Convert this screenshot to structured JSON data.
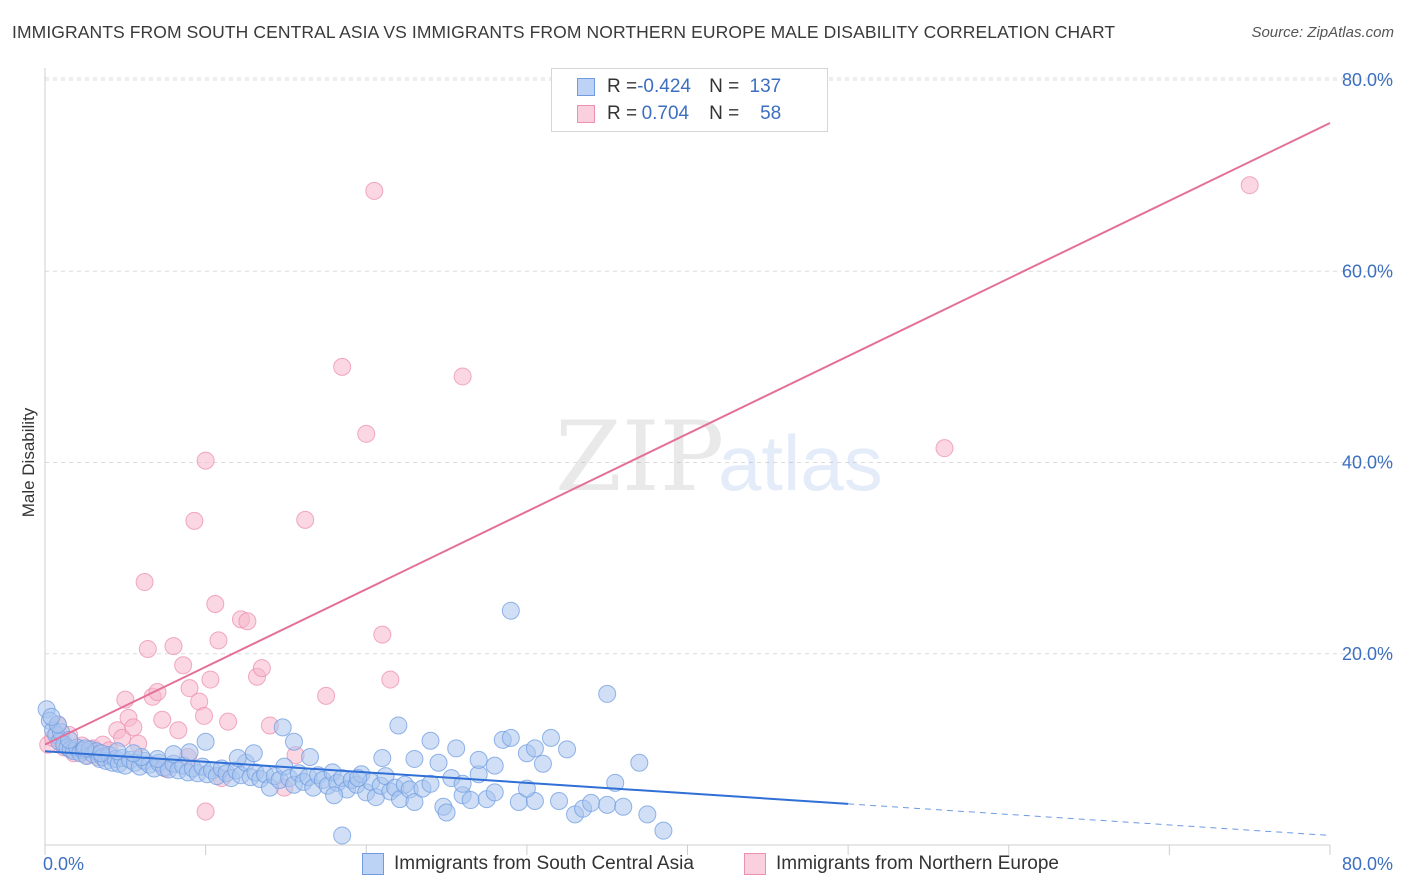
{
  "title": "IMMIGRANTS FROM SOUTH CENTRAL ASIA VS IMMIGRANTS FROM NORTHERN EUROPE MALE DISABILITY CORRELATION CHART",
  "source": "Source: ZipAtlas.com",
  "watermark": {
    "zip": "ZIP",
    "atlas": "atlas"
  },
  "legend": {
    "rows": [
      {
        "r_label": "R =",
        "r_value": "-0.424",
        "n_label": "N =",
        "n_value": "137",
        "color": "#a9c4ef"
      },
      {
        "r_label": "R =",
        "r_value": "0.704",
        "n_label": "N =",
        "n_value": "58",
        "color": "#f6b7cb"
      }
    ]
  },
  "bottom_legend": {
    "items": [
      {
        "label": "Immigrants from South Central Asia",
        "color": "#a9c4ef"
      },
      {
        "label": "Immigrants from Northern Europe",
        "color": "#f6b7cb"
      }
    ]
  },
  "chart_data": {
    "type": "scatter",
    "title": "IMMIGRANTS FROM SOUTH CENTRAL ASIA VS IMMIGRANTS FROM NORTHERN EUROPE MALE DISABILITY CORRELATION CHART",
    "xlabel": "",
    "ylabel": "Male Disability",
    "xlim": [
      0,
      80
    ],
    "ylim": [
      0,
      80
    ],
    "x_tick_labels": [
      "0.0%",
      "80.0%"
    ],
    "y_tick_labels": [
      "20.0%",
      "40.0%",
      "60.0%",
      "80.0%"
    ],
    "y_ticks": [
      20,
      40,
      60,
      80
    ],
    "grid": true,
    "legend_position": "top-center",
    "series": [
      {
        "name": "Immigrants from South Central Asia",
        "color": "#6f9ce0",
        "fill": "#a9c4ef",
        "r": -0.424,
        "n": 137,
        "trend": {
          "x0": 0,
          "y0": 9.8,
          "x1": 50,
          "y1": 4.3,
          "dashed_to_x": 80,
          "dashed_to_y": 1.0
        },
        "points": [
          [
            0.1,
            14.2
          ],
          [
            0.3,
            13.0
          ],
          [
            0.5,
            12.0
          ],
          [
            0.7,
            11.5
          ],
          [
            0.9,
            10.8
          ],
          [
            1.0,
            11.8
          ],
          [
            1.2,
            10.5
          ],
          [
            1.4,
            10.2
          ],
          [
            1.6,
            10.0
          ],
          [
            1.8,
            9.8
          ],
          [
            2.0,
            10.2
          ],
          [
            2.2,
            9.6
          ],
          [
            2.4,
            9.9
          ],
          [
            2.6,
            9.3
          ],
          [
            2.8,
            10.0
          ],
          [
            3.0,
            9.5
          ],
          [
            3.2,
            9.8
          ],
          [
            3.4,
            9.0
          ],
          [
            3.6,
            9.2
          ],
          [
            3.8,
            8.8
          ],
          [
            4.0,
            9.4
          ],
          [
            4.2,
            8.6
          ],
          [
            4.4,
            9.0
          ],
          [
            4.6,
            8.5
          ],
          [
            4.8,
            9.1
          ],
          [
            5.0,
            8.3
          ],
          [
            5.3,
            8.9
          ],
          [
            5.6,
            8.6
          ],
          [
            5.9,
            8.2
          ],
          [
            6.2,
            8.8
          ],
          [
            6.5,
            8.4
          ],
          [
            6.8,
            8.0
          ],
          [
            7.1,
            8.6
          ],
          [
            7.4,
            8.1
          ],
          [
            7.7,
            7.9
          ],
          [
            8.0,
            8.5
          ],
          [
            8.3,
            7.8
          ],
          [
            8.6,
            8.3
          ],
          [
            8.9,
            7.6
          ],
          [
            9.2,
            8.0
          ],
          [
            9.5,
            7.5
          ],
          [
            9.8,
            8.2
          ],
          [
            10.1,
            7.4
          ],
          [
            10.4,
            7.8
          ],
          [
            10.7,
            7.2
          ],
          [
            11.0,
            8.0
          ],
          [
            11.3,
            7.5
          ],
          [
            11.6,
            7.0
          ],
          [
            11.9,
            7.8
          ],
          [
            12.2,
            7.3
          ],
          [
            12.5,
            8.6
          ],
          [
            12.8,
            7.1
          ],
          [
            13.1,
            7.6
          ],
          [
            13.4,
            6.9
          ],
          [
            13.7,
            7.4
          ],
          [
            14.0,
            6.0
          ],
          [
            14.3,
            7.2
          ],
          [
            14.6,
            6.8
          ],
          [
            14.9,
            8.2
          ],
          [
            15.2,
            7.0
          ],
          [
            15.5,
            6.3
          ],
          [
            15.8,
            7.5
          ],
          [
            16.1,
            6.6
          ],
          [
            16.4,
            7.1
          ],
          [
            16.7,
            6.0
          ],
          [
            17.0,
            7.3
          ],
          [
            17.3,
            6.8
          ],
          [
            17.6,
            6.2
          ],
          [
            17.9,
            7.6
          ],
          [
            18.2,
            6.5
          ],
          [
            18.5,
            7.0
          ],
          [
            18.8,
            5.8
          ],
          [
            19.1,
            6.8
          ],
          [
            19.4,
            6.3
          ],
          [
            19.7,
            7.4
          ],
          [
            20.0,
            5.5
          ],
          [
            20.3,
            6.6
          ],
          [
            20.6,
            5.0
          ],
          [
            20.9,
            6.2
          ],
          [
            21.2,
            7.2
          ],
          [
            21.5,
            5.6
          ],
          [
            21.8,
            6.0
          ],
          [
            22.1,
            4.8
          ],
          [
            22.4,
            6.3
          ],
          [
            22.7,
            5.8
          ],
          [
            23.0,
            4.5
          ],
          [
            23.5,
            5.9
          ],
          [
            24.0,
            10.9
          ],
          [
            24.5,
            8.6
          ],
          [
            24.8,
            4.0
          ],
          [
            25.0,
            3.4
          ],
          [
            25.3,
            7.0
          ],
          [
            25.6,
            10.1
          ],
          [
            26.0,
            5.2
          ],
          [
            26.5,
            4.7
          ],
          [
            27.0,
            7.4
          ],
          [
            27.5,
            4.8
          ],
          [
            28.0,
            8.3
          ],
          [
            28.5,
            11.0
          ],
          [
            29.0,
            24.5
          ],
          [
            29.5,
            4.5
          ],
          [
            30.0,
            9.6
          ],
          [
            30.5,
            4.6
          ],
          [
            31.0,
            8.5
          ],
          [
            31.5,
            11.2
          ],
          [
            32.0,
            4.6
          ],
          [
            32.5,
            10.0
          ],
          [
            33.0,
            3.2
          ],
          [
            33.5,
            3.8
          ],
          [
            34.0,
            4.4
          ],
          [
            35.0,
            4.2
          ],
          [
            35.5,
            6.5
          ],
          [
            36.0,
            4.0
          ],
          [
            37.0,
            8.6
          ],
          [
            37.5,
            3.2
          ],
          [
            38.5,
            1.5
          ],
          [
            29.0,
            11.2
          ],
          [
            22.0,
            12.5
          ],
          [
            18.0,
            5.2
          ],
          [
            14.8,
            12.3
          ],
          [
            15.5,
            10.8
          ],
          [
            10.0,
            10.8
          ],
          [
            9.0,
            9.7
          ],
          [
            8.0,
            9.5
          ],
          [
            7.0,
            9.0
          ],
          [
            6.0,
            9.2
          ],
          [
            5.5,
            9.6
          ],
          [
            4.5,
            9.8
          ],
          [
            3.5,
            9.6
          ],
          [
            2.5,
            10.1
          ],
          [
            1.5,
            11.0
          ],
          [
            0.8,
            12.6
          ],
          [
            0.4,
            13.4
          ],
          [
            12.0,
            9.1
          ],
          [
            13.0,
            9.6
          ],
          [
            16.5,
            9.2
          ],
          [
            19.5,
            7.0
          ],
          [
            21.0,
            9.1
          ],
          [
            23.0,
            9.0
          ],
          [
            24.0,
            6.4
          ],
          [
            26.0,
            6.4
          ],
          [
            27.0,
            8.9
          ],
          [
            28.0,
            5.5
          ],
          [
            30.0,
            5.9
          ],
          [
            18.5,
            1.0
          ],
          [
            30.5,
            10.1
          ],
          [
            35.0,
            15.8
          ]
        ]
      },
      {
        "name": "Immigrants from Northern Europe",
        "color": "#ec8fb0",
        "fill": "#f6b7cb",
        "r": 0.704,
        "n": 58,
        "trend": {
          "x0": 0,
          "y0": 10.5,
          "x1": 80,
          "y1": 75.5
        },
        "points": [
          [
            0.2,
            10.5
          ],
          [
            0.5,
            11.2
          ],
          [
            0.8,
            12.6
          ],
          [
            1.0,
            11.0
          ],
          [
            1.2,
            10.2
          ],
          [
            1.5,
            11.5
          ],
          [
            1.8,
            9.6
          ],
          [
            2.0,
            10.0
          ],
          [
            2.3,
            10.4
          ],
          [
            2.6,
            9.4
          ],
          [
            3.0,
            10.1
          ],
          [
            3.3,
            9.2
          ],
          [
            3.6,
            10.5
          ],
          [
            4.0,
            9.9
          ],
          [
            4.5,
            12.0
          ],
          [
            4.8,
            11.2
          ],
          [
            5.0,
            15.2
          ],
          [
            5.2,
            13.3
          ],
          [
            5.5,
            12.3
          ],
          [
            5.8,
            10.6
          ],
          [
            6.2,
            27.5
          ],
          [
            6.4,
            20.5
          ],
          [
            6.7,
            15.5
          ],
          [
            7.0,
            16.0
          ],
          [
            7.3,
            13.1
          ],
          [
            7.5,
            8.0
          ],
          [
            8.0,
            20.8
          ],
          [
            8.3,
            12.0
          ],
          [
            8.6,
            18.8
          ],
          [
            8.9,
            9.2
          ],
          [
            9.0,
            16.4
          ],
          [
            9.3,
            33.9
          ],
          [
            9.6,
            15.0
          ],
          [
            9.9,
            13.5
          ],
          [
            10.0,
            40.2
          ],
          [
            10.3,
            17.3
          ],
          [
            10.6,
            25.2
          ],
          [
            10.8,
            21.4
          ],
          [
            11.0,
            7.0
          ],
          [
            11.4,
            12.9
          ],
          [
            12.2,
            23.6
          ],
          [
            12.6,
            23.4
          ],
          [
            13.2,
            17.6
          ],
          [
            13.5,
            18.5
          ],
          [
            14.0,
            12.5
          ],
          [
            14.9,
            6.0
          ],
          [
            15.6,
            9.4
          ],
          [
            16.2,
            34.0
          ],
          [
            17.5,
            15.6
          ],
          [
            18.5,
            50.0
          ],
          [
            20.0,
            43.0
          ],
          [
            20.5,
            68.4
          ],
          [
            21.0,
            22.0
          ],
          [
            21.5,
            17.3
          ],
          [
            26.0,
            49.0
          ],
          [
            56.0,
            41.5
          ],
          [
            75.0,
            69.0
          ],
          [
            10.0,
            3.5
          ]
        ]
      }
    ]
  }
}
